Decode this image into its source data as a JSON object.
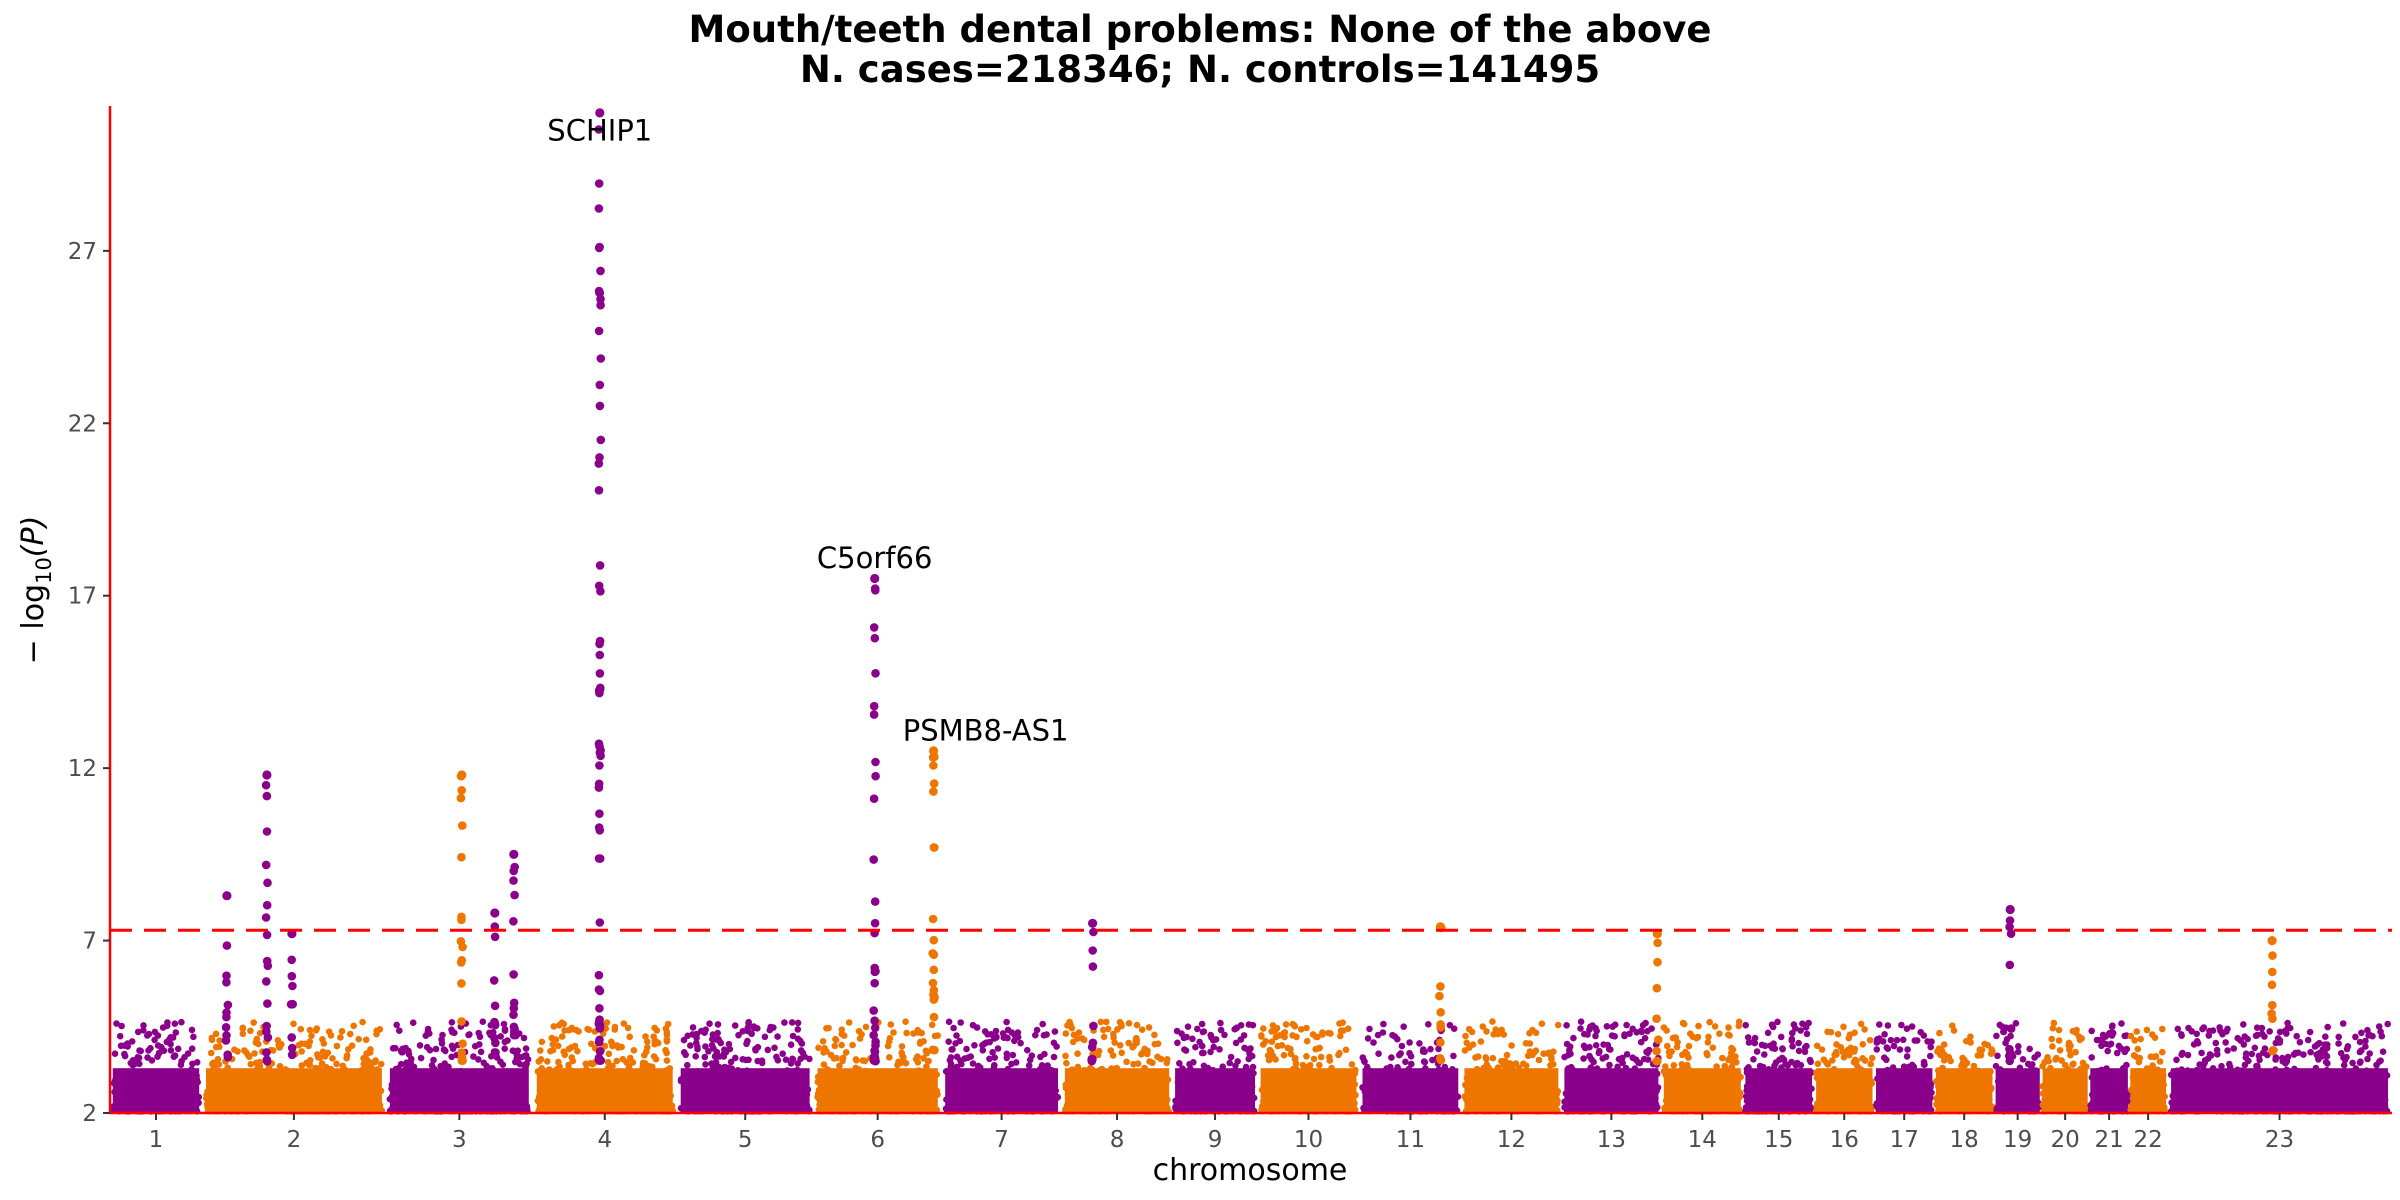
{
  "chart_data": {
    "type": "scatter",
    "subtype": "manhattan",
    "title": "Mouth/teeth dental problems: None of the above",
    "subtitle": "N. cases=218346; N. controls=141495",
    "xlabel": "chromosome",
    "ylabel_main": "− log",
    "ylabel_sub": "10",
    "ylabel_tail": "(P)",
    "ylim": [
      2,
      31.2
    ],
    "yticks": [
      2,
      7,
      12,
      17,
      22,
      27
    ],
    "xlim": [
      0,
      2283
    ],
    "grid": false,
    "legend": "none",
    "significance_line": 7.3,
    "colors": {
      "odd": "#8B008B",
      "even": "#EE7600",
      "axis": "#FF0000",
      "threshold": "#FF0000"
    },
    "chromosomes": [
      {
        "label": "1",
        "start": 0,
        "end": 92
      },
      {
        "label": "2",
        "start": 92,
        "end": 276
      },
      {
        "label": "3",
        "start": 276,
        "end": 423
      },
      {
        "label": "4",
        "start": 423,
        "end": 567
      },
      {
        "label": "5",
        "start": 567,
        "end": 704
      },
      {
        "label": "6",
        "start": 704,
        "end": 832
      },
      {
        "label": "7",
        "start": 832,
        "end": 952
      },
      {
        "label": "8",
        "start": 952,
        "end": 1063
      },
      {
        "label": "9",
        "start": 1063,
        "end": 1148
      },
      {
        "label": "10",
        "start": 1148,
        "end": 1250
      },
      {
        "label": "11",
        "start": 1250,
        "end": 1352
      },
      {
        "label": "12",
        "start": 1352,
        "end": 1452
      },
      {
        "label": "13",
        "start": 1452,
        "end": 1552
      },
      {
        "label": "14",
        "start": 1552,
        "end": 1634
      },
      {
        "label": "15",
        "start": 1634,
        "end": 1705
      },
      {
        "label": "16",
        "start": 1705,
        "end": 1765
      },
      {
        "label": "17",
        "start": 1765,
        "end": 1825
      },
      {
        "label": "18",
        "start": 1825,
        "end": 1885
      },
      {
        "label": "19",
        "start": 1885,
        "end": 1932
      },
      {
        "label": "20",
        "start": 1932,
        "end": 1980
      },
      {
        "label": "21",
        "start": 1980,
        "end": 2020
      },
      {
        "label": "22",
        "start": 2020,
        "end": 2058
      },
      {
        "label": "23",
        "start": 2058,
        "end": 2283
      }
    ],
    "peaks": [
      {
        "chr": "1",
        "x": 117,
        "y": 8.3
      },
      {
        "chr": "1",
        "x": 157,
        "y": 11.8
      },
      {
        "chr": "1",
        "x": 182,
        "y": 7.2
      },
      {
        "chr": "2",
        "x": 352,
        "y": 11.8
      },
      {
        "chr": "3",
        "x": 385,
        "y": 7.8
      },
      {
        "chr": "3",
        "x": 404,
        "y": 9.5
      },
      {
        "chr": "3",
        "x": 490,
        "y": 31.0,
        "label": "SCHIP1"
      },
      {
        "chr": "5",
        "x": 765,
        "y": 17.5,
        "label": "C5orf66"
      },
      {
        "chr": "6",
        "x": 824,
        "y": 12.5,
        "label": "PSMB8-AS1"
      },
      {
        "chr": "7",
        "x": 983,
        "y": 7.5
      },
      {
        "chr": "10",
        "x": 1331,
        "y": 7.4
      },
      {
        "chr": "12",
        "x": 1548,
        "y": 7.2
      },
      {
        "chr": "17",
        "x": 1901,
        "y": 7.9
      },
      {
        "chr": "22",
        "x": 2163,
        "y": 7.0
      }
    ],
    "annotations": [
      {
        "text": "SCHIP1",
        "x": 490,
        "y": 30.2
      },
      {
        "text": "C5orf66",
        "x": 765,
        "y": 17.8
      },
      {
        "text": "PSMB8-AS1",
        "x": 876,
        "y": 12.8
      }
    ]
  }
}
